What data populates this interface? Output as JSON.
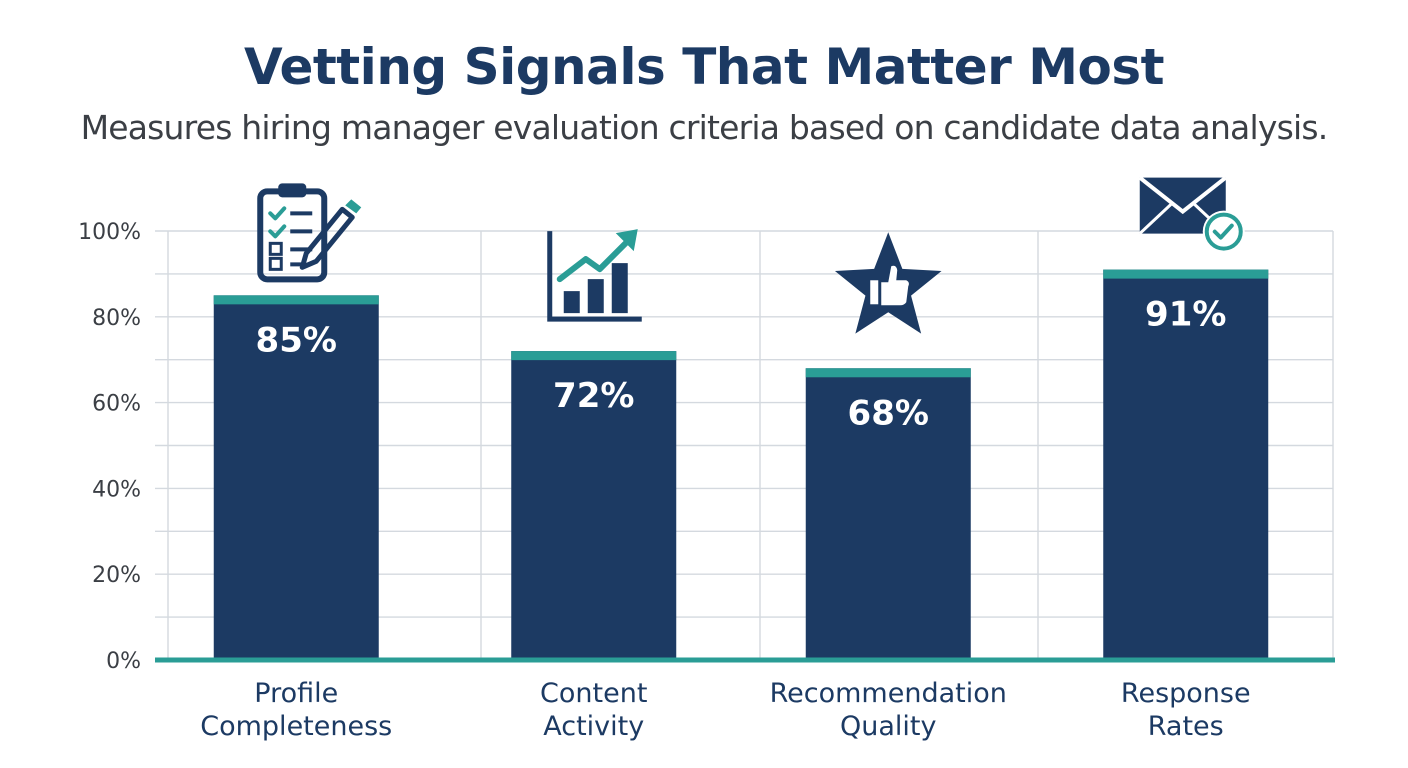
{
  "chart_data": {
    "type": "bar",
    "title": "Vetting Signals That Matter Most",
    "subtitle": "Measures hiring manager evaluation criteria based on candidate data analysis.",
    "categories": [
      "Profile Completeness",
      "Content Activity",
      "Recommendation Quality",
      "Response Rates"
    ],
    "category_lines": [
      [
        "Profile",
        "Completeness"
      ],
      [
        "Content",
        "Activity"
      ],
      [
        "Recommendation",
        "Quality"
      ],
      [
        "Response",
        "Rates"
      ]
    ],
    "values": [
      85,
      72,
      68,
      91
    ],
    "data_labels": [
      "85%",
      "72%",
      "68%",
      "91%"
    ],
    "ylim": [
      0,
      100
    ],
    "yticks": [
      0,
      20,
      40,
      60,
      80,
      100
    ],
    "ytick_labels": [
      "0%",
      "20%",
      "40%",
      "60%",
      "80%",
      "100%"
    ],
    "grid": true,
    "icons": [
      "clipboard-checklist-icon",
      "growth-chart-icon",
      "star-thumbs-up-icon",
      "envelope-check-icon"
    ],
    "colors": {
      "bar": "#1c3a63",
      "bar_cap": "#2a9d96",
      "baseline": "#2a9d96",
      "grid": "#d4d9df",
      "title": "#1c3a63"
    }
  }
}
